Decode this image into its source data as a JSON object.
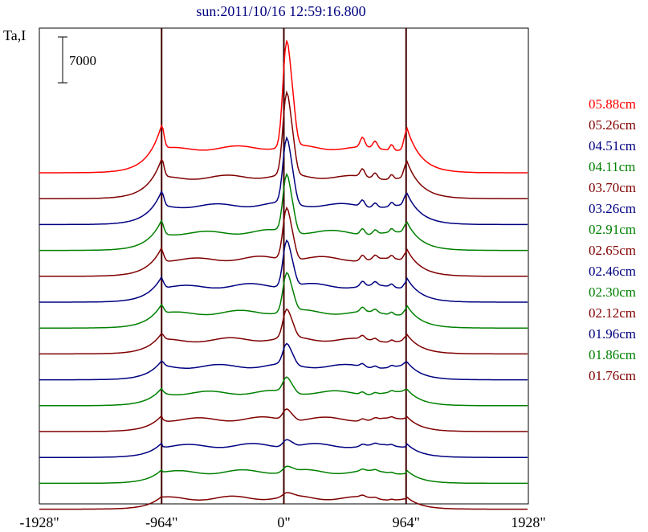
{
  "chart_data": {
    "type": "line",
    "title": "sun:2011/10/16 12:59:16.800",
    "ylabel": "Ta,I",
    "scale_bar_label": "7000",
    "scale_bar_value": 7000,
    "x_ticks": [
      {
        "value": -1928,
        "label": "-1928\""
      },
      {
        "value": -964,
        "label": "-964\""
      },
      {
        "value": 0,
        "label": "0\""
      },
      {
        "value": 964,
        "label": "964\""
      },
      {
        "value": 1928,
        "label": "1928\""
      }
    ],
    "xlim": [
      -1928,
      1928
    ],
    "vertical_lines_at": [
      -964,
      0,
      964
    ],
    "grid": false,
    "legend_position": "right",
    "series": [
      {
        "name": "05.88cm",
        "color": "#ff0000",
        "peak": 6.6,
        "limb": 3.0,
        "tail": 3.0
      },
      {
        "name": "05.26cm",
        "color": "#800000",
        "peak": 5.3,
        "limb": 2.5,
        "tail": 2.5
      },
      {
        "name": "04.51cm",
        "color": "#000080",
        "peak": 4.4,
        "limb": 2.1,
        "tail": 2.1
      },
      {
        "name": "04.11cm",
        "color": "#008000",
        "peak": 4.0,
        "limb": 1.9,
        "tail": 1.9
      },
      {
        "name": "03.70cm",
        "color": "#800000",
        "peak": 3.7,
        "limb": 1.8,
        "tail": 1.8
      },
      {
        "name": "03.26cm",
        "color": "#000080",
        "peak": 3.4,
        "limb": 1.6,
        "tail": 1.6
      },
      {
        "name": "02.91cm",
        "color": "#008000",
        "peak": 3.0,
        "limb": 1.5,
        "tail": 1.5
      },
      {
        "name": "02.65cm",
        "color": "#800000",
        "peak": 2.4,
        "limb": 1.3,
        "tail": 1.3
      },
      {
        "name": "02.46cm",
        "color": "#000080",
        "peak": 2.0,
        "limb": 1.2,
        "tail": 1.2
      },
      {
        "name": "02.30cm",
        "color": "#008000",
        "peak": 1.7,
        "limb": 1.1,
        "tail": 1.1
      },
      {
        "name": "02.12cm",
        "color": "#800000",
        "peak": 1.5,
        "limb": 1.0,
        "tail": 1.0
      },
      {
        "name": "01.96cm",
        "color": "#000080",
        "peak": 1.3,
        "limb": 0.9,
        "tail": 0.9
      },
      {
        "name": "01.86cm",
        "color": "#008000",
        "peak": 1.2,
        "limb": 0.85,
        "tail": 0.85
      },
      {
        "name": "01.76cm",
        "color": "#800000",
        "peak": 1.1,
        "limb": 0.8,
        "tail": 0.8
      }
    ]
  }
}
